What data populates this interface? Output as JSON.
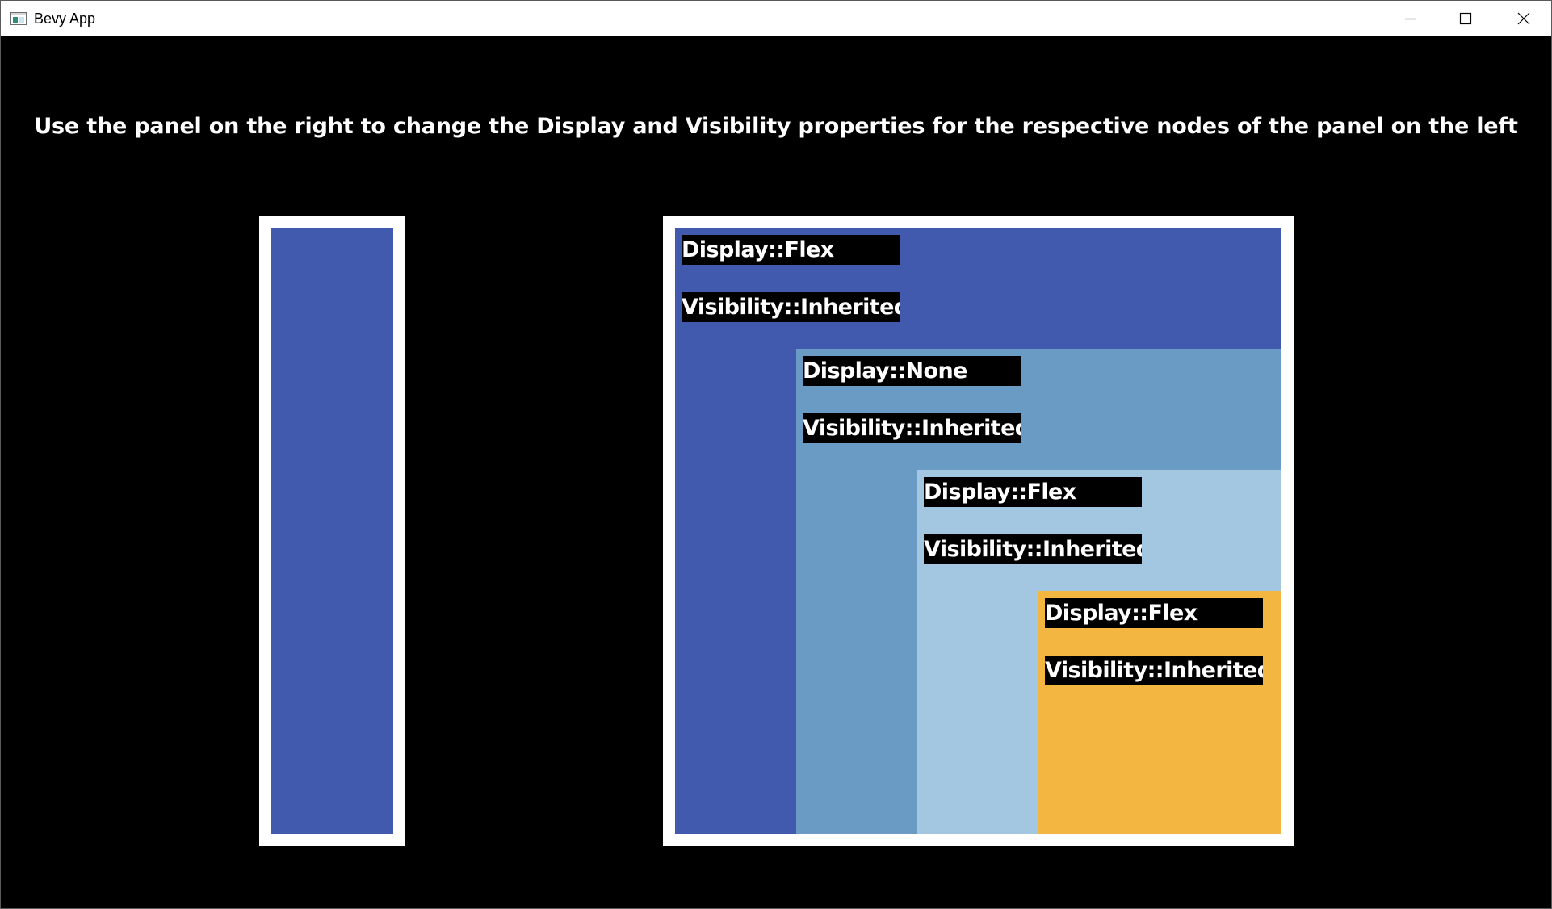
{
  "window": {
    "title": "Bevy App",
    "controls": {
      "minimize": "minimize-icon",
      "maximize": "maximize-icon",
      "close": "close-icon"
    }
  },
  "heading": "Use the panel on the right to change the Display and Visibility properties for the respective nodes of the panel on the left",
  "colors": {
    "background": "#000000",
    "frame": "#ffffff",
    "node_0": "#415aae",
    "node_1": "#6a9bc5",
    "node_2": "#a4c7e1",
    "node_3": "#f2b641",
    "label_background": "#000000",
    "label_text": "#ffffff"
  },
  "control_panel": {
    "nodes": [
      {
        "display": "Display::Flex",
        "visibility": "Visibility::Inherited"
      },
      {
        "display": "Display::None",
        "visibility": "Visibility::Inherited"
      },
      {
        "display": "Display::Flex",
        "visibility": "Visibility::Inherited"
      },
      {
        "display": "Display::Flex",
        "visibility": "Visibility::Inherited"
      }
    ]
  }
}
